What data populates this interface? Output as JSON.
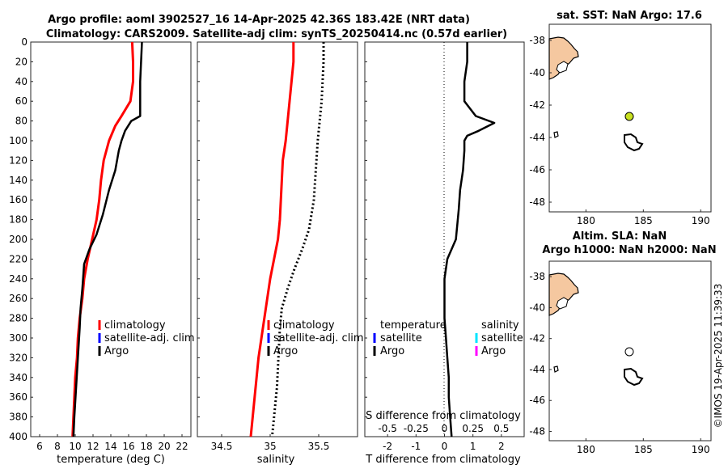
{
  "title": {
    "line1": "Argo profile: aoml 3902527_16 14-Apr-2025 42.36S 183.42E (NRT data)",
    "line2": "Climatology: CARS2009. Satellite-adj clim: synTS_20250414.nc (0.57d earlier)"
  },
  "colors": {
    "climatology": "#ff0000",
    "satellite": "#0000ff",
    "argo": "#000000",
    "sal_satellite": "#00e5ff",
    "sal_argo": "#ff00ff",
    "land": "#f5c8a0",
    "argo_dot": "#c8e020"
  },
  "chart_data": [
    {
      "type": "line",
      "name": "temperature",
      "xlabel": "temperature (deg C)",
      "xlim": [
        5,
        23
      ],
      "ylim": [
        0,
        400
      ],
      "xticks": [
        "6",
        "8",
        "10",
        "12",
        "14",
        "16",
        "18",
        "20",
        "22"
      ],
      "yticks": [
        "0",
        "20",
        "40",
        "60",
        "80",
        "100",
        "120",
        "140",
        "160",
        "180",
        "200",
        "220",
        "240",
        "260",
        "280",
        "300",
        "320",
        "340",
        "360",
        "380",
        "400"
      ],
      "legend": {
        "climatology": "climatology",
        "satellite": "satellite-adj. clim",
        "argo": "Argo"
      },
      "series": [
        {
          "name": "climatology",
          "points": [
            [
              16.4,
              0
            ],
            [
              16.5,
              20
            ],
            [
              16.5,
              40
            ],
            [
              16.2,
              60
            ],
            [
              15.2,
              75
            ],
            [
              14.5,
              85
            ],
            [
              13.8,
              100
            ],
            [
              13.2,
              120
            ],
            [
              12.9,
              140
            ],
            [
              12.7,
              160
            ],
            [
              12.4,
              180
            ],
            [
              11.9,
              200
            ],
            [
              11.4,
              220
            ],
            [
              11.0,
              240
            ],
            [
              10.8,
              260
            ],
            [
              10.5,
              280
            ],
            [
              10.3,
              300
            ],
            [
              10.2,
              320
            ],
            [
              10.0,
              340
            ],
            [
              9.9,
              360
            ],
            [
              9.8,
              380
            ],
            [
              9.7,
              400
            ]
          ]
        },
        {
          "name": "argo",
          "points": [
            [
              17.5,
              0
            ],
            [
              17.4,
              20
            ],
            [
              17.3,
              40
            ],
            [
              17.3,
              60
            ],
            [
              17.3,
              75
            ],
            [
              16.3,
              80
            ],
            [
              15.6,
              90
            ],
            [
              15.2,
              100
            ],
            [
              14.9,
              110
            ],
            [
              14.5,
              130
            ],
            [
              13.8,
              150
            ],
            [
              13.1,
              175
            ],
            [
              12.4,
              195
            ],
            [
              11.6,
              210
            ],
            [
              11.0,
              225
            ],
            [
              10.8,
              250
            ],
            [
              10.6,
              270
            ],
            [
              10.5,
              290
            ],
            [
              10.3,
              320
            ],
            [
              10.1,
              350
            ],
            [
              9.9,
              380
            ],
            [
              9.8,
              400
            ]
          ]
        }
      ]
    },
    {
      "type": "line",
      "name": "salinity",
      "xlabel": "salinity",
      "xlim": [
        34.25,
        35.9
      ],
      "ylim": [
        0,
        400
      ],
      "xticks": [
        "34.5",
        "35",
        "35.5"
      ],
      "legend": {
        "climatology": "climatology",
        "satellite": "satellite-adj. clim",
        "argo": "Argo"
      },
      "series": [
        {
          "name": "climatology",
          "points": [
            [
              35.24,
              0
            ],
            [
              35.24,
              20
            ],
            [
              35.22,
              40
            ],
            [
              35.2,
              60
            ],
            [
              35.18,
              80
            ],
            [
              35.16,
              100
            ],
            [
              35.13,
              120
            ],
            [
              35.12,
              140
            ],
            [
              35.11,
              160
            ],
            [
              35.1,
              180
            ],
            [
              35.08,
              200
            ],
            [
              35.04,
              220
            ],
            [
              35.0,
              240
            ],
            [
              34.97,
              260
            ],
            [
              34.94,
              280
            ],
            [
              34.91,
              300
            ],
            [
              34.88,
              320
            ],
            [
              34.86,
              340
            ],
            [
              34.84,
              360
            ],
            [
              34.82,
              380
            ],
            [
              34.8,
              400
            ]
          ]
        },
        {
          "name": "argo",
          "points": [
            [
              35.55,
              0
            ],
            [
              35.55,
              20
            ],
            [
              35.54,
              40
            ],
            [
              35.53,
              60
            ],
            [
              35.51,
              80
            ],
            [
              35.49,
              100
            ],
            [
              35.47,
              130
            ],
            [
              35.45,
              160
            ],
            [
              35.4,
              190
            ],
            [
              35.33,
              210
            ],
            [
              35.25,
              230
            ],
            [
              35.18,
              250
            ],
            [
              35.12,
              270
            ],
            [
              35.1,
              290
            ],
            [
              35.09,
              310
            ],
            [
              35.08,
              330
            ],
            [
              35.07,
              350
            ],
            [
              35.05,
              370
            ],
            [
              35.03,
              390
            ],
            [
              35.02,
              400
            ]
          ]
        }
      ]
    },
    {
      "type": "line",
      "name": "difference",
      "xlabel": "T difference from climatology",
      "xlabel2": "S difference from climatology",
      "xlim": [
        -2.8,
        2.8
      ],
      "ylim": [
        0,
        400
      ],
      "xticks": [
        "-2",
        "-1",
        "0",
        "1",
        "2"
      ],
      "xticks2": [
        "-0.5",
        "-0.25",
        "0",
        "0.25",
        "0.5"
      ],
      "legend": {
        "temperature": "temperature",
        "salinity": "salinity",
        "satellite": "satellite",
        "argo": "Argo",
        "sal_satellite": "satellite",
        "sal_argo": "Argo"
      },
      "series": [
        {
          "name": "T difference",
          "points": [
            [
              0.8,
              0
            ],
            [
              0.8,
              20
            ],
            [
              0.7,
              40
            ],
            [
              0.7,
              55
            ],
            [
              0.7,
              60
            ],
            [
              1.1,
              75
            ],
            [
              1.75,
              82
            ],
            [
              1.2,
              90
            ],
            [
              0.8,
              95
            ],
            [
              0.7,
              100
            ],
            [
              0.7,
              110
            ],
            [
              0.65,
              130
            ],
            [
              0.55,
              150
            ],
            [
              0.5,
              170
            ],
            [
              0.4,
              200
            ],
            [
              0.1,
              220
            ],
            [
              0.0,
              240
            ],
            [
              0.0,
              260
            ],
            [
              0.0,
              280
            ],
            [
              0.05,
              300
            ],
            [
              0.1,
              320
            ],
            [
              0.15,
              340
            ],
            [
              0.15,
              360
            ],
            [
              0.2,
              380
            ],
            [
              0.25,
              400
            ]
          ]
        }
      ]
    }
  ],
  "maps": [
    {
      "title": "sat. SST: NaN Argo: 17.6",
      "yticks": [
        "-38",
        "-40",
        "-42",
        "-44",
        "-46",
        "-48"
      ],
      "xticks": [
        "180",
        "185",
        "190"
      ],
      "lat": -42.36,
      "lon": 183.42
    },
    {
      "title": "Altim. SLA: NaN",
      "title2": "Argo h1000: NaN h2000: NaN",
      "yticks": [
        "-38",
        "-40",
        "-42",
        "-44",
        "-46",
        "-48"
      ],
      "xticks": [
        "180",
        "185",
        "190"
      ],
      "lat": -42.36,
      "lon": 183.42
    }
  ],
  "watermark": "©IMOS 19-Apr-2025 11:39:33"
}
